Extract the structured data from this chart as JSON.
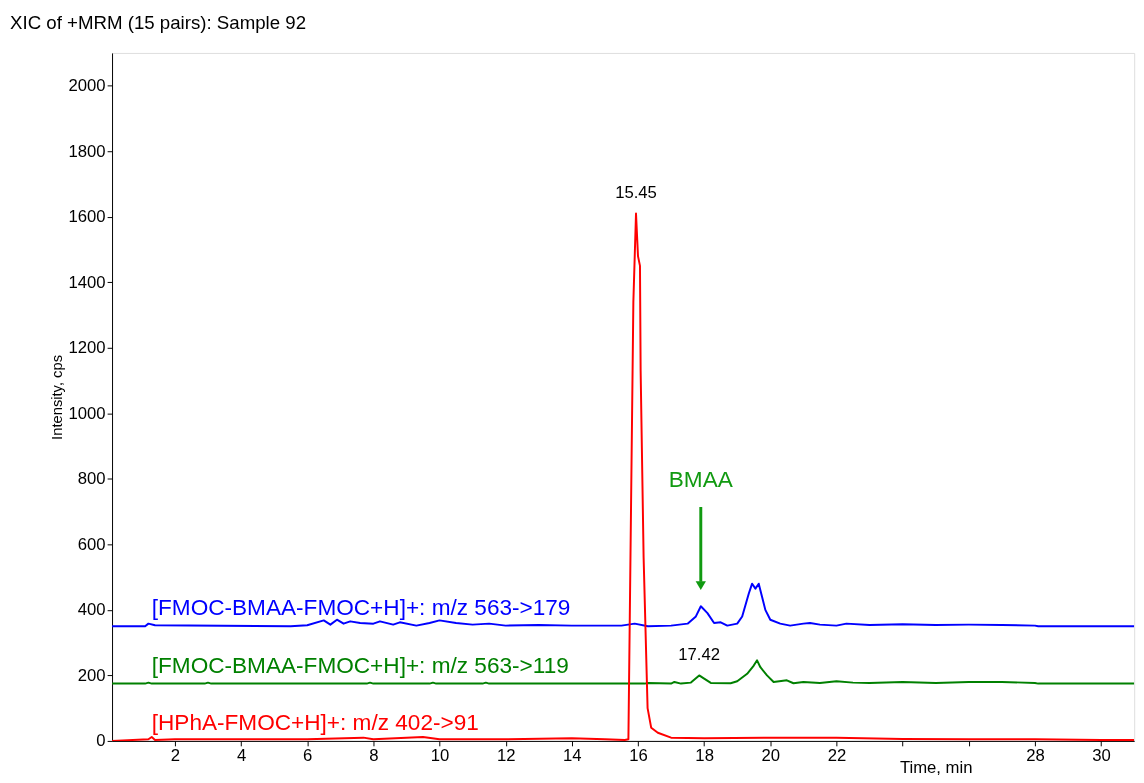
{
  "chart_data": {
    "type": "line",
    "title": "XIC of +MRM (15 pairs): Sample 92",
    "xlabel": "Time, min",
    "ylabel": "Intensity, cps",
    "xlim": [
      0.1,
      31
    ],
    "ylim": [
      0,
      2100
    ],
    "xticks": [
      2,
      4,
      6,
      8,
      10,
      12,
      14,
      16,
      18,
      20,
      22,
      {
        "value": 24,
        "label": null
      },
      {
        "value": 26,
        "label": null
      },
      28,
      30
    ],
    "yticks": [
      0,
      200,
      400,
      600,
      800,
      1000,
      1200,
      1400,
      1600,
      1800,
      2000
    ],
    "grid": false,
    "legend": false,
    "line_style": "solid",
    "marker": "none",
    "series": [
      {
        "name": "[FMOC-BMAA-FMOC+H]+: m/z 563->179",
        "color": "#0000ff",
        "x": [
          0.1,
          1.1,
          1.2,
          1.4,
          5.5,
          6.0,
          6.5,
          6.7,
          6.9,
          7.1,
          7.3,
          7.6,
          8.0,
          8.2,
          8.6,
          8.8,
          9.3,
          9.7,
          10.0,
          10.5,
          11.0,
          11.5,
          12.0,
          13.0,
          14.0,
          15.0,
          15.5,
          15.9,
          16.3,
          17.0,
          17.5,
          17.75,
          17.9,
          18.1,
          18.3,
          18.5,
          18.7,
          19.0,
          19.15,
          19.35,
          19.45,
          19.55,
          19.65,
          19.75,
          19.85,
          20.0,
          20.3,
          20.6,
          21.0,
          21.2,
          21.5,
          22.0,
          22.3,
          23.0,
          24.0,
          25.0,
          26.0,
          27.0,
          28.0,
          28.1,
          31.0
        ],
        "values": [
          350,
          350,
          358,
          353,
          350,
          353,
          368,
          355,
          370,
          358,
          365,
          360,
          358,
          365,
          355,
          362,
          352,
          360,
          368,
          360,
          355,
          358,
          352,
          354,
          352,
          352,
          352,
          358,
          350,
          352,
          358,
          380,
          411,
          390,
          360,
          362,
          352,
          358,
          380,
          450,
          480,
          465,
          480,
          440,
          400,
          370,
          358,
          352,
          358,
          360,
          355,
          352,
          358,
          354,
          356,
          354,
          355,
          354,
          352,
          350,
          350
        ]
      },
      {
        "name": "[FMOC-BMAA-FMOC+H]+: m/z 563->119",
        "color": "#008000",
        "x": [
          0.1,
          1.1,
          1.2,
          1.3,
          2.9,
          3.0,
          3.1,
          7.8,
          7.9,
          8.0,
          9.7,
          9.8,
          9.9,
          11.3,
          11.4,
          11.5,
          16.2,
          16.3,
          17.0,
          17.1,
          17.3,
          17.6,
          17.85,
          18.0,
          18.2,
          18.8,
          19.0,
          19.3,
          19.5,
          19.6,
          19.7,
          19.9,
          20.1,
          20.5,
          20.7,
          21.0,
          21.5,
          22.0,
          22.5,
          23.0,
          24.0,
          25.0,
          26.0,
          27.0,
          28.0,
          28.1,
          31.0
        ],
        "values": [
          175,
          175,
          178,
          175,
          175,
          178,
          175,
          175,
          178,
          175,
          175,
          178,
          175,
          175,
          178,
          175,
          175,
          177,
          175,
          180,
          175,
          178,
          200,
          190,
          177,
          176,
          182,
          205,
          230,
          246,
          225,
          200,
          180,
          185,
          176,
          180,
          177,
          182,
          178,
          177,
          180,
          177,
          180,
          180,
          177,
          175,
          175
        ]
      },
      {
        "name": "[HPhA-FMOC+H]+: m/z 402->91",
        "color": "#ff0000",
        "x": [
          0.1,
          1.2,
          1.3,
          1.4,
          2.0,
          4.0,
          6.0,
          7.7,
          8.0,
          9.5,
          10.0,
          12.0,
          14.0,
          15.0,
          15.6,
          15.71,
          15.86,
          15.94,
          16.0,
          16.06,
          16.08,
          16.17,
          16.29,
          16.4,
          16.6,
          17.0,
          18.0,
          20.0,
          22.0,
          24.0,
          26.0,
          28.0,
          30.0,
          31.0
        ],
        "values": [
          0,
          5,
          12,
          3,
          5,
          5,
          5,
          10,
          5,
          12,
          5,
          5,
          8,
          5,
          3,
          5,
          1340,
          1610,
          1480,
          1450,
          1130,
          560,
          100,
          40,
          25,
          10,
          8,
          10,
          10,
          6,
          5,
          5,
          3,
          3
        ]
      }
    ],
    "annotations": [
      {
        "text": "15.45",
        "x": 15.94,
        "y": 1610
      },
      {
        "text": "17.42",
        "x": 17.85,
        "y": 200
      },
      "BMAA"
    ]
  }
}
